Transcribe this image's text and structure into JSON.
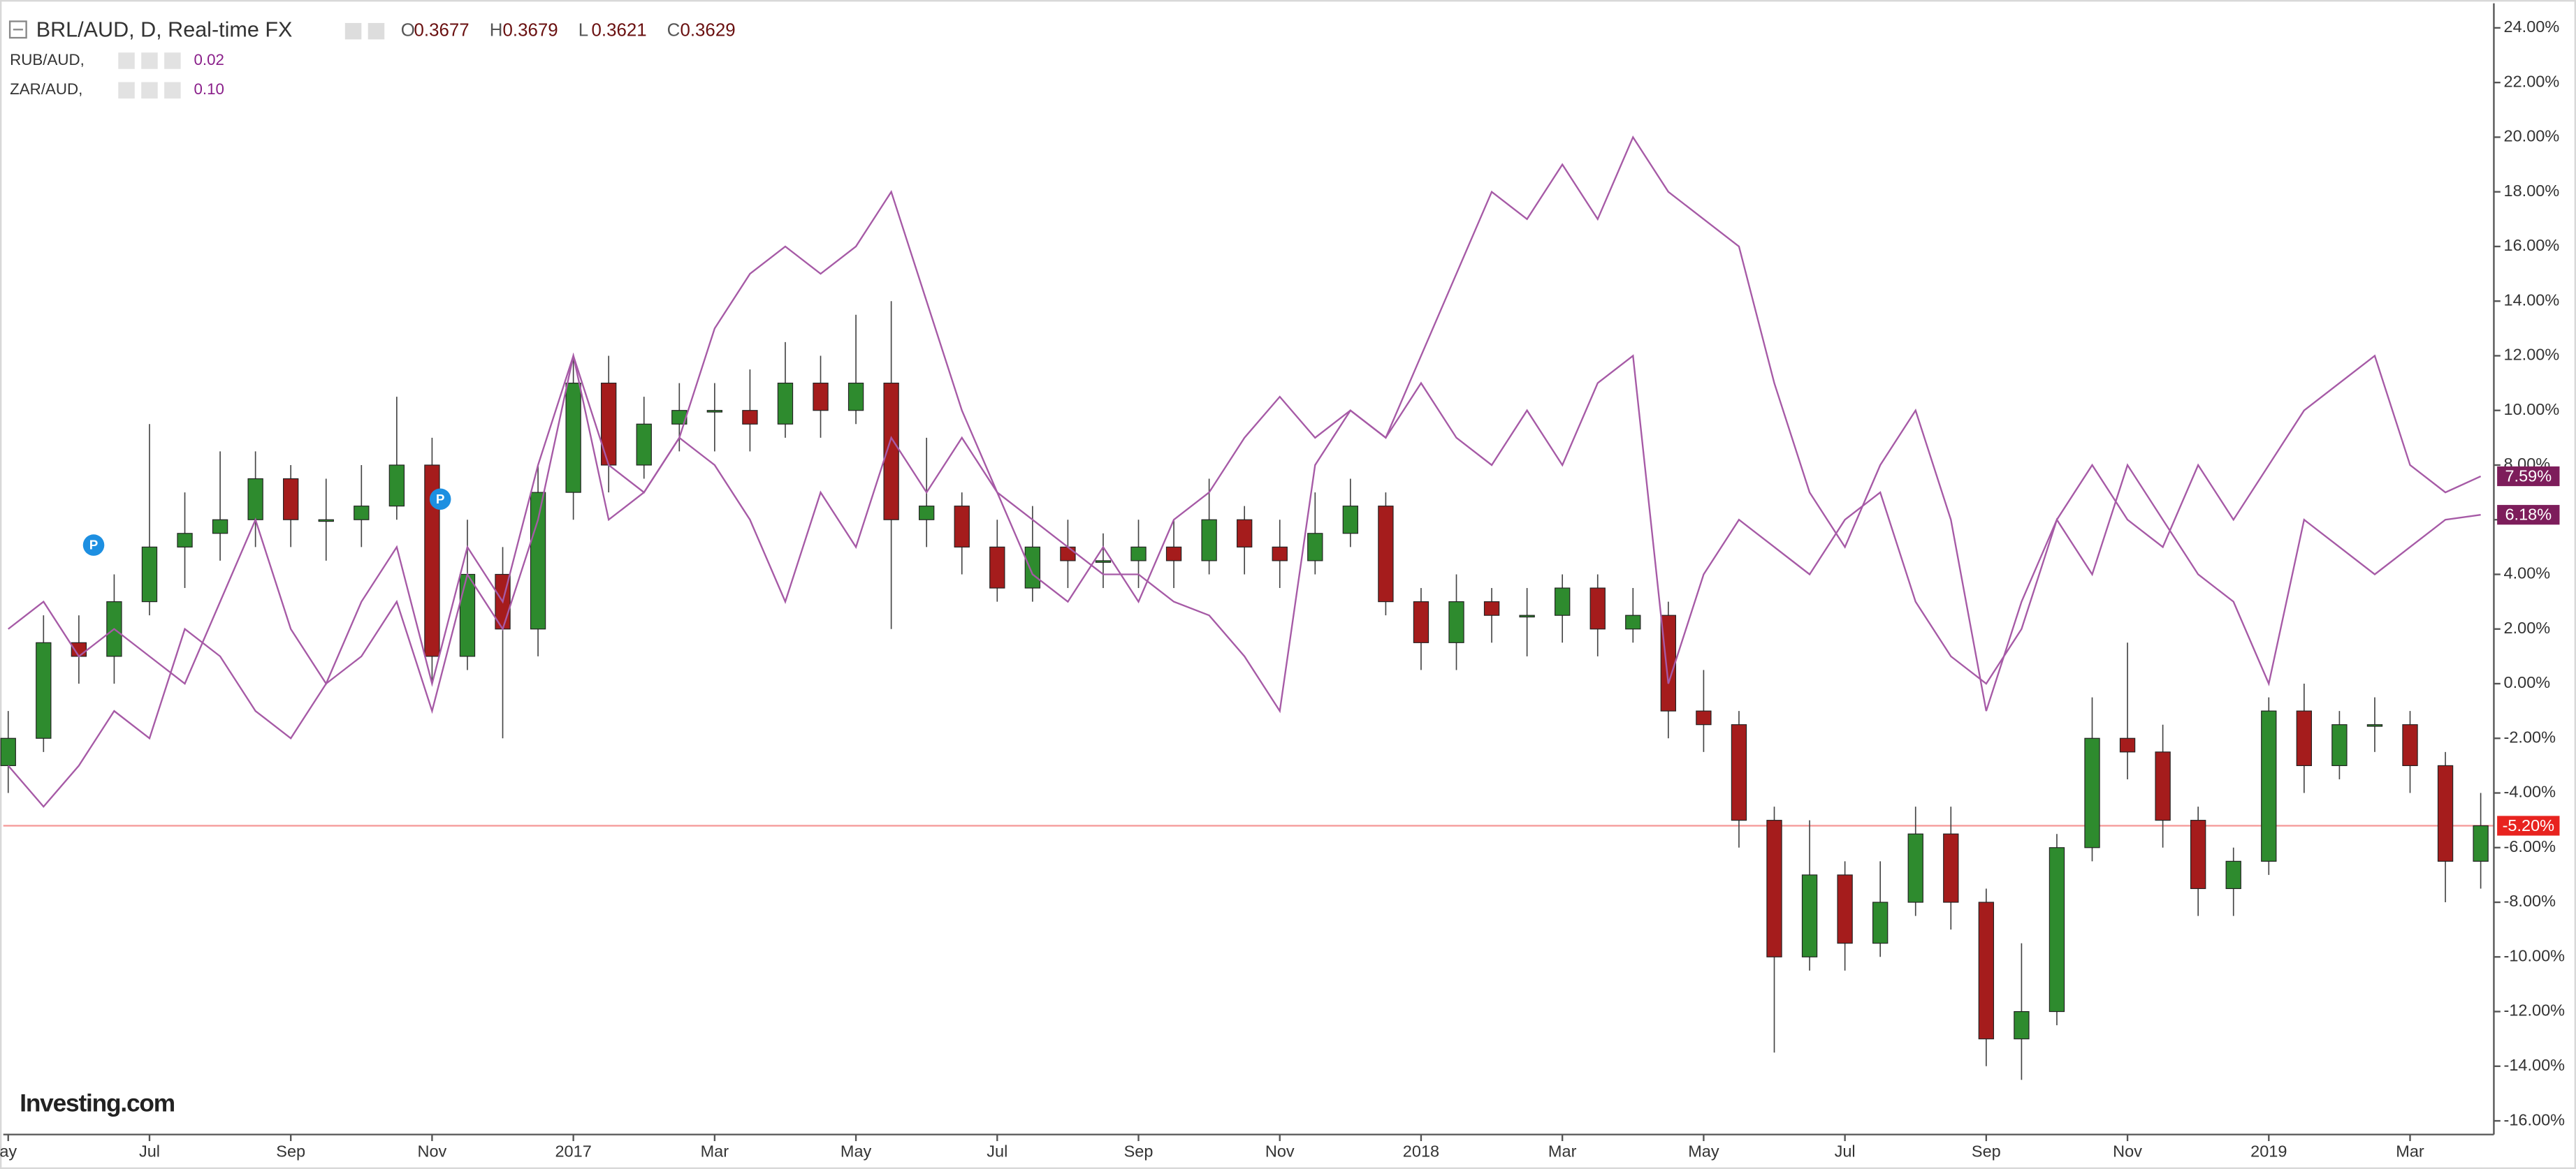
{
  "chart_data": {
    "type": "candlestick",
    "title": "BRL/AUD, D, Real-time FX",
    "ohlc_labels": [
      "O",
      "H",
      "L",
      "C"
    ],
    "ohlc_values": [
      0.3677,
      0.3679,
      0.3621,
      0.3629
    ],
    "annotations": [
      "P",
      "P"
    ],
    "logo": "Investing.com",
    "categories": [
      "ay",
      null,
      null,
      null,
      "Jul",
      null,
      null,
      null,
      "Sep",
      null,
      null,
      null,
      "Nov",
      null,
      null,
      null,
      "2017",
      null,
      null,
      null,
      "Mar",
      null,
      null,
      null,
      "May",
      null,
      null,
      null,
      "Jul",
      null,
      null,
      null,
      "Sep",
      null,
      null,
      null,
      "Nov",
      null,
      null,
      null,
      "2018",
      null,
      null,
      null,
      "Mar",
      null,
      null,
      null,
      "May",
      null,
      null,
      null,
      "Jul",
      null,
      null,
      null,
      "Sep",
      null,
      null,
      null,
      "Nov",
      null,
      null,
      null,
      "2019",
      null,
      null,
      null,
      "Mar",
      null,
      null
    ],
    "ylim": [
      -16.5,
      24.9
    ],
    "yticks": [
      {
        "value": -16,
        "label": "-16.00%"
      },
      {
        "value": -14,
        "label": "-14.00%"
      },
      {
        "value": -12,
        "label": "-12.00%"
      },
      {
        "value": -10,
        "label": "-10.00%"
      },
      {
        "value": -8,
        "label": "-8.00%"
      },
      {
        "value": -6,
        "label": "-6.00%"
      },
      {
        "value": -4,
        "label": "-4.00%"
      },
      {
        "value": -2,
        "label": "-2.00%"
      },
      {
        "value": 0,
        "label": "0.00%"
      },
      {
        "value": 2,
        "label": "2.00%"
      },
      {
        "value": 4,
        "label": "4.00%"
      },
      {
        "value": 6,
        "label": "6.00%"
      },
      {
        "value": 8,
        "label": "8.00%"
      },
      {
        "value": 10,
        "label": "10.00%"
      },
      {
        "value": 12,
        "label": "12.00%"
      },
      {
        "value": 14,
        "label": "14.00%"
      },
      {
        "value": 16,
        "label": "16.00%"
      },
      {
        "value": 18,
        "label": "18.00%"
      },
      {
        "value": 20,
        "label": "20.00%"
      },
      {
        "value": 22,
        "label": "22.00%"
      },
      {
        "value": 24,
        "label": "24.00%"
      }
    ],
    "grid": false,
    "current": {
      "value": -5.2,
      "label": "-5.20%",
      "color": "#e8231f"
    },
    "series": [
      {
        "type": "candlestick",
        "up_color": "#2e8b2e",
        "down_color": "#a51c1c",
        "open": [
          -3,
          -2,
          1.5,
          1,
          3,
          5,
          5.5,
          6,
          7.5,
          6,
          6,
          6.5,
          8,
          1,
          4,
          2,
          7,
          11,
          8,
          9.5,
          10,
          10,
          9.5,
          11,
          10,
          11,
          6,
          6.5,
          5,
          3.5,
          5,
          4.5,
          4.5,
          5,
          4.5,
          6,
          5,
          4.5,
          5.5,
          6.5,
          3,
          1.5,
          3,
          2.5,
          2.5,
          3.5,
          2,
          2.5,
          -1,
          -1.5,
          -5,
          -10,
          -7,
          -9.5,
          -8,
          -5.5,
          -8,
          -13,
          -12,
          -6,
          -2,
          -2.5,
          -5,
          -7.5,
          -6.5,
          -1,
          -3,
          -1.5,
          -1.5,
          -3,
          -6.5
        ],
        "high": [
          -1,
          2.5,
          2.5,
          4,
          9.5,
          7,
          8.5,
          8.5,
          8,
          7.5,
          8,
          10.5,
          9,
          6,
          5,
          8,
          12,
          12,
          10.5,
          11,
          11,
          11.5,
          12.5,
          12,
          13.5,
          14,
          9,
          7,
          6,
          6.5,
          6,
          5.5,
          6,
          6,
          7.5,
          6.5,
          6,
          7,
          7.5,
          7,
          3.5,
          4,
          3.5,
          3.5,
          4,
          4,
          3.5,
          3,
          0.5,
          -1,
          -4.5,
          -5,
          -6.5,
          -6.5,
          -4.5,
          -4.5,
          -7.5,
          -9.5,
          -5.5,
          -0.5,
          1.5,
          -1.5,
          -4.5,
          -6,
          -0.5,
          0,
          -1,
          -0.5,
          -1,
          -2.5,
          -4
        ],
        "low": [
          -4,
          -2.5,
          0,
          0,
          2.5,
          3.5,
          4.5,
          5,
          5,
          4.5,
          5,
          6,
          0,
          0.5,
          -2,
          1,
          6,
          7,
          7.5,
          8.5,
          8.5,
          8.5,
          9,
          9,
          9.5,
          2,
          5,
          4,
          3,
          3,
          3.5,
          3.5,
          3.5,
          3.5,
          4,
          4,
          3.5,
          4,
          5,
          2.5,
          0.5,
          0.5,
          1.5,
          1,
          1.5,
          1,
          1.5,
          -2,
          -2.5,
          -6,
          -13.5,
          -10.5,
          -10.5,
          -10,
          -8.5,
          -9,
          -14,
          -14.5,
          -12.5,
          -6.5,
          -3.5,
          -6,
          -8.5,
          -8.5,
          -7,
          -4,
          -3.5,
          -2.5,
          -4,
          -8,
          -7.5
        ],
        "close": [
          -2,
          1.5,
          1,
          3,
          5,
          5.5,
          6,
          7.5,
          6,
          6,
          6.5,
          8,
          1,
          4,
          2,
          7,
          11,
          8,
          9.5,
          10,
          10,
          9.5,
          11,
          10,
          11,
          6,
          6.5,
          5,
          3.5,
          5,
          4.5,
          4.5,
          5,
          4.5,
          6,
          5,
          4.5,
          5.5,
          6.5,
          3,
          1.5,
          3,
          2.5,
          2.5,
          3.5,
          2,
          2.5,
          -1,
          -1.5,
          -5,
          -10,
          -7,
          -9.5,
          -8,
          -5.5,
          -8,
          -13,
          -12,
          -6,
          -2,
          -2.5,
          -5,
          -7.5,
          -6.5,
          -1,
          -3,
          -1.5,
          -1.5,
          -3,
          -6.5,
          -5.2
        ]
      },
      {
        "type": "line",
        "name": "RUB/AUD,",
        "color": "#a65aa6",
        "badge_color": "#7d1d5b",
        "legend_value": "0.02",
        "last_label": "7.59%",
        "values": [
          -3,
          -4.5,
          -3,
          -1,
          -2,
          2,
          1,
          -1,
          -2,
          0,
          1,
          3,
          -1,
          4,
          2,
          6,
          12,
          8,
          7,
          9,
          13,
          15,
          16,
          15,
          16,
          18,
          14,
          10,
          7,
          6,
          5,
          4,
          4,
          3,
          2.5,
          1,
          -1,
          8,
          10,
          9,
          12,
          15,
          18,
          17,
          19,
          17,
          20,
          18,
          17,
          16,
          11,
          7,
          5,
          8,
          10,
          6,
          -1,
          3,
          6,
          8,
          6,
          5,
          8,
          6,
          8,
          10,
          11,
          12,
          8,
          7,
          7.59
        ]
      },
      {
        "type": "line",
        "name": "ZAR/AUD,",
        "color": "#a65aa6",
        "badge_color": "#7d1d5b",
        "legend_value": "0.10",
        "last_label": "6.18%",
        "values": [
          2,
          3,
          1,
          2,
          1,
          0,
          3,
          6,
          2,
          0,
          3,
          5,
          0,
          5,
          3,
          8,
          12,
          6,
          7,
          9,
          8,
          6,
          3,
          7,
          5,
          9,
          7,
          9,
          7,
          4,
          3,
          5,
          3,
          6,
          7,
          9,
          10.5,
          9,
          10,
          9,
          11,
          9,
          8,
          10,
          8,
          11,
          12,
          0,
          4,
          6,
          5,
          4,
          6,
          7,
          3,
          1,
          0,
          2,
          6,
          4,
          8,
          6,
          4,
          3,
          0,
          6,
          5,
          4,
          5,
          6,
          6.18
        ]
      }
    ]
  }
}
